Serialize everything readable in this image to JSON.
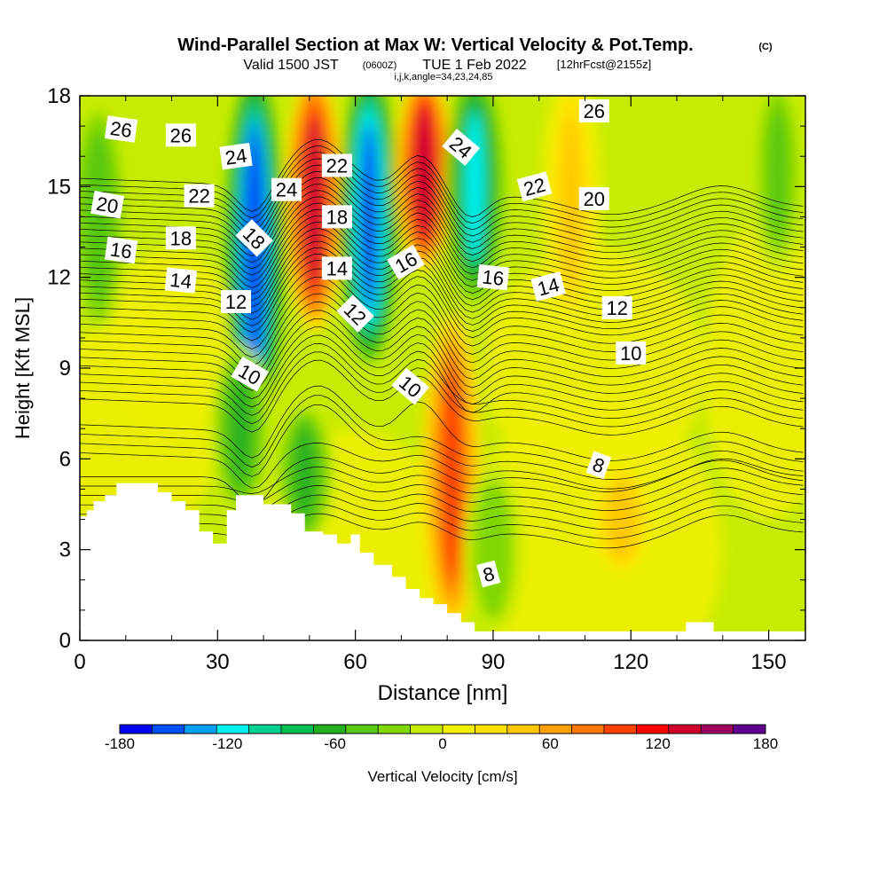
{
  "title": {
    "main": "Wind-Parallel Section at Max W: Vertical Velocity & Pot.Temp.",
    "copyright": "(C)",
    "valid_prefix": "Valid 1500 JST",
    "valid_utc": "(0600Z)",
    "valid_date": "TUE 1 Feb 2022",
    "forecast": "[12hrFcst@2155z]",
    "indices": "i,j,k,angle=34,23,24,85"
  },
  "colors": {
    "bands": [
      "#0000f5",
      "#0050f5",
      "#00a0f5",
      "#00f0f0",
      "#00d090",
      "#00c050",
      "#20b020",
      "#58c810",
      "#80d800",
      "#c8ec00",
      "#f0f000",
      "#ffe000",
      "#ffc800",
      "#ffa000",
      "#ff7800",
      "#ff4000",
      "#ff0000",
      "#d00030",
      "#a00060",
      "#600090"
    ],
    "terrain": "#ffffff",
    "contour": "#000000"
  },
  "chart_data": {
    "type": "heatmap",
    "xlabel": "Distance [nm]",
    "ylabel": "Height [Kft MSL]",
    "xlim": [
      0,
      158
    ],
    "ylim": [
      0,
      18
    ],
    "x_ticks": [
      "0",
      "30",
      "60",
      "90",
      "120",
      "150"
    ],
    "y_ticks": [
      "0",
      "3",
      "6",
      "9",
      "12",
      "15",
      "18"
    ],
    "colorbar": {
      "label": "Vertical Velocity [cm/s]",
      "min": -180,
      "max": 180,
      "step": 18,
      "tick_labels": [
        "-180",
        "-120",
        "-60",
        "0",
        "60",
        "120",
        "180"
      ]
    },
    "vertical_velocity_features": [
      {
        "x": 38,
        "y_range": [
          8,
          18
        ],
        "w": -160
      },
      {
        "x": 51,
        "y_range": [
          11,
          18
        ],
        "w": 130
      },
      {
        "x": 63,
        "y_range": [
          10,
          18
        ],
        "w": -150
      },
      {
        "x": 75,
        "y_range": [
          13,
          18
        ],
        "w": 140
      },
      {
        "x": 81,
        "y_range": [
          1,
          10
        ],
        "w": 100
      },
      {
        "x": 86,
        "y_range": [
          12,
          18
        ],
        "w": -110
      },
      {
        "x": 107,
        "y_range": [
          11,
          18
        ],
        "w": 40
      },
      {
        "x": 35,
        "y_range": [
          5,
          9
        ],
        "w": -60
      },
      {
        "x": 49,
        "y_range": [
          4,
          7
        ],
        "w": -60
      },
      {
        "x": 90,
        "y_range": [
          1,
          5
        ],
        "w": -30
      },
      {
        "x": 118,
        "y_range": [
          3,
          5
        ],
        "w": 50
      },
      {
        "x": 4,
        "y_range": [
          11,
          17
        ],
        "w": -50
      },
      {
        "x": 152,
        "y_range": [
          13,
          18
        ],
        "w": -40
      }
    ],
    "potential_temperature_levels": [
      8,
      10,
      12,
      14,
      16,
      18,
      20,
      22,
      24,
      26
    ],
    "contour_labels": [
      {
        "text": "26",
        "x": 9,
        "y": 16.9,
        "angle": 8
      },
      {
        "text": "26",
        "x": 22,
        "y": 16.7,
        "angle": 0
      },
      {
        "text": "24",
        "x": 34,
        "y": 16.0,
        "angle": -8
      },
      {
        "text": "22",
        "x": 26,
        "y": 14.7,
        "angle": 0
      },
      {
        "text": "24",
        "x": 45,
        "y": 14.9,
        "angle": 0
      },
      {
        "text": "20",
        "x": 6,
        "y": 14.4,
        "angle": 10
      },
      {
        "text": "18",
        "x": 22,
        "y": 13.3,
        "angle": 0
      },
      {
        "text": "16",
        "x": 9,
        "y": 12.9,
        "angle": 8
      },
      {
        "text": "18",
        "x": 38,
        "y": 13.3,
        "angle": 45
      },
      {
        "text": "22",
        "x": 56,
        "y": 15.7,
        "angle": 0
      },
      {
        "text": "18",
        "x": 56,
        "y": 14.0,
        "angle": 0
      },
      {
        "text": "14",
        "x": 22,
        "y": 11.9,
        "angle": 6
      },
      {
        "text": "12",
        "x": 34,
        "y": 11.2,
        "angle": 0
      },
      {
        "text": "14",
        "x": 56,
        "y": 12.3,
        "angle": 0
      },
      {
        "text": "16",
        "x": 71,
        "y": 12.5,
        "angle": -30
      },
      {
        "text": "12",
        "x": 60,
        "y": 10.8,
        "angle": 45
      },
      {
        "text": "10",
        "x": 37,
        "y": 8.8,
        "angle": 30
      },
      {
        "text": "24",
        "x": 83,
        "y": 16.3,
        "angle": 40
      },
      {
        "text": "22",
        "x": 99,
        "y": 15.0,
        "angle": -15
      },
      {
        "text": "16",
        "x": 90,
        "y": 12.0,
        "angle": 6
      },
      {
        "text": "14",
        "x": 102,
        "y": 11.7,
        "angle": -15
      },
      {
        "text": "12",
        "x": 117,
        "y": 11.0,
        "angle": 0
      },
      {
        "text": "10",
        "x": 72,
        "y": 8.4,
        "angle": 40
      },
      {
        "text": "10",
        "x": 120,
        "y": 9.5,
        "angle": 0
      },
      {
        "text": "26",
        "x": 112,
        "y": 17.5,
        "angle": 0
      },
      {
        "text": "20",
        "x": 112,
        "y": 14.6,
        "angle": 0
      },
      {
        "text": "8",
        "x": 113,
        "y": 5.8,
        "angle": 20
      },
      {
        "text": "8",
        "x": 89,
        "y": 2.2,
        "angle": -15
      }
    ]
  }
}
